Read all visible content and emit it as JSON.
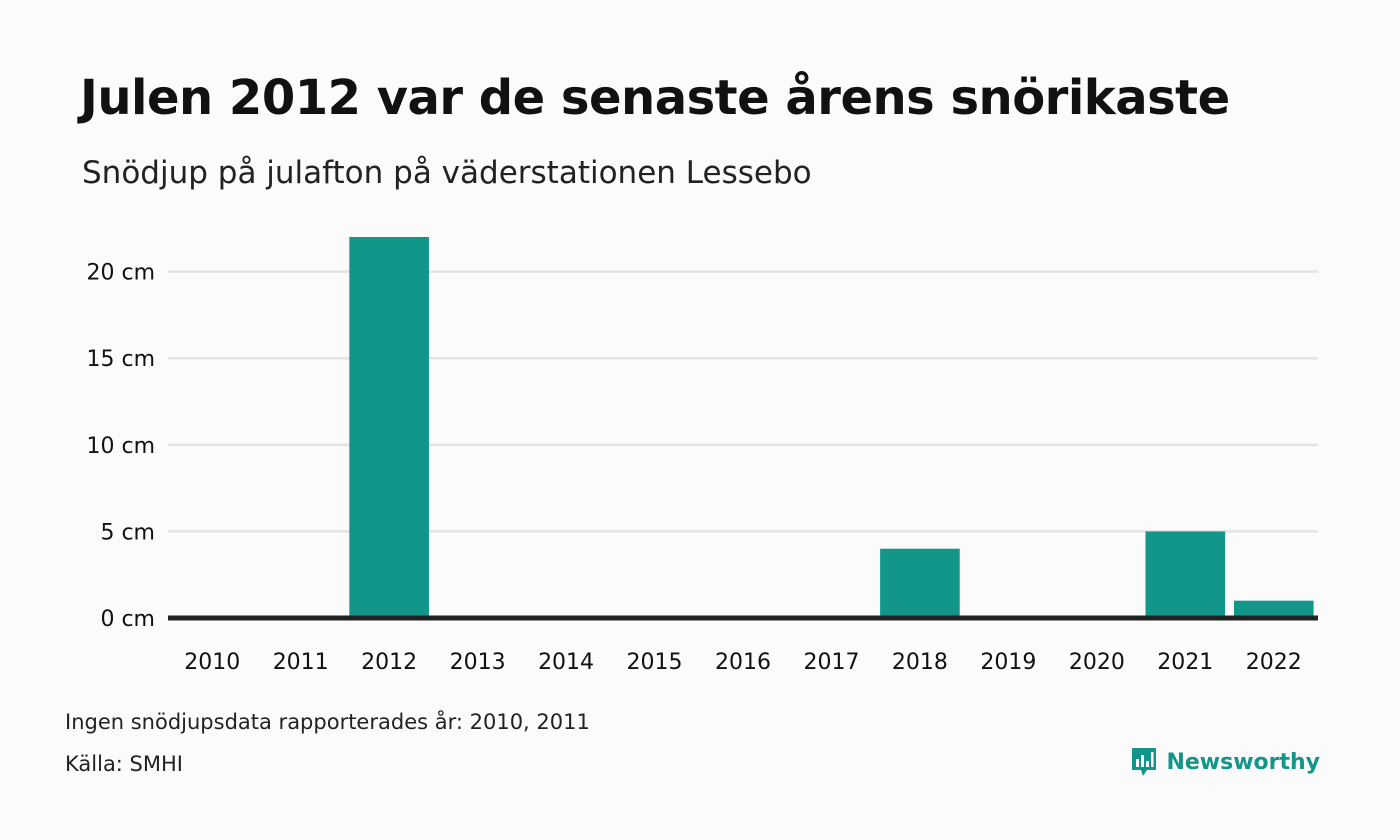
{
  "title": "Julen 2012 var de senaste årens snörikaste",
  "subtitle": "Snödjup på julafton på väderstationen Lessebo",
  "footnote": "Ingen snödjupsdata rapporterades år: 2010, 2011",
  "source": "Källa: SMHI",
  "brand": {
    "name": "Newsworthy",
    "icon": "newsworthy-logo-icon",
    "color": "#13968a"
  },
  "colors": {
    "bar": "#13968a",
    "grid": "#e3e3e3",
    "baseline": "#222222"
  },
  "chart_data": {
    "type": "bar",
    "categories": [
      "2010",
      "2011",
      "2012",
      "2013",
      "2014",
      "2015",
      "2016",
      "2017",
      "2018",
      "2019",
      "2020",
      "2021",
      "2022"
    ],
    "values": [
      null,
      null,
      22,
      0,
      0,
      0,
      0,
      0,
      4,
      0,
      0,
      5,
      1
    ],
    "ylim": [
      0,
      22
    ],
    "yticks": [
      0,
      5,
      10,
      15,
      20
    ],
    "ytick_labels": [
      "0 cm",
      "5 cm",
      "10 cm",
      "15 cm",
      "20 cm"
    ],
    "grid": true,
    "legend": false
  }
}
